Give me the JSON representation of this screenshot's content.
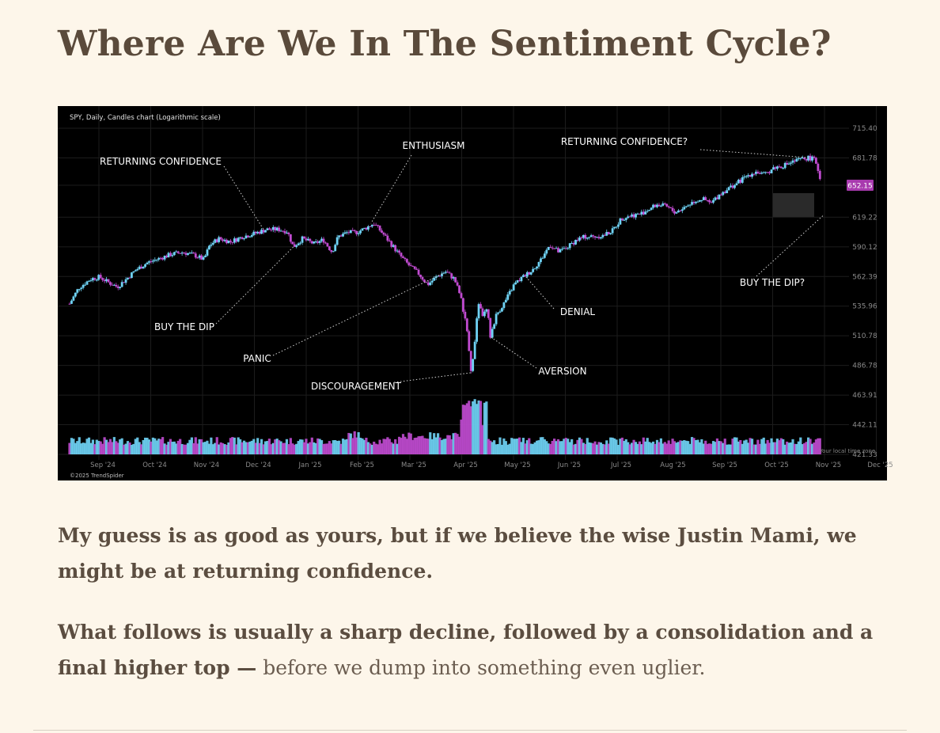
{
  "article": {
    "title": "Where Are We In The Sentiment Cycle?",
    "paragraph1": "My guess is as good as yours, but if we believe the wise Justin Mami, we might be at returning confidence.",
    "paragraph2_bold": "What follows is usually a sharp decline, followed by a consolidation and a final higher top —",
    "paragraph2_rest": " before we dump into something even uglier."
  },
  "chart_data": {
    "type": "candlestick",
    "title": "SPY, Daily, Candles chart (Logarithmic scale)",
    "footer_credit": "©2025 TrendSpider",
    "timezone_label": "Your local time zone",
    "y_scale": "log",
    "ylim": [
      421.33,
      715.4
    ],
    "y_ticks": [
      715.4,
      681.78,
      652.15,
      619.22,
      590.12,
      562.39,
      535.96,
      510.78,
      486.78,
      463.91,
      442.11,
      421.33
    ],
    "y_tick_labels": [
      "715.40",
      "681.78",
      "652.15",
      "619.22",
      "590.12",
      "562.39",
      "535.96",
      "510.78",
      "486.78",
      "463.91",
      "442.11",
      "421.33"
    ],
    "current_price": 652.15,
    "current_price_label": "652.15",
    "x_ticks": [
      "Sep '24",
      "Oct '24",
      "Nov '24",
      "Dec '24",
      "Jan '25",
      "Feb '25",
      "Mar '25",
      "Apr '25",
      "May '25",
      "Jun '25",
      "Jul '25",
      "Aug '25",
      "Sep '25",
      "Oct '25",
      "Nov '25",
      "Dec '25"
    ],
    "price_path": [
      [
        0,
        538
      ],
      [
        0.3,
        552
      ],
      [
        0.7,
        560
      ],
      [
        1.0,
        562
      ],
      [
        1.3,
        557
      ],
      [
        1.6,
        553
      ],
      [
        1.9,
        560
      ],
      [
        2.2,
        568
      ],
      [
        2.6,
        575
      ],
      [
        3.0,
        579
      ],
      [
        3.4,
        583
      ],
      [
        3.8,
        585
      ],
      [
        4.2,
        582
      ],
      [
        4.5,
        578
      ],
      [
        4.7,
        592
      ],
      [
        5.0,
        598
      ],
      [
        5.4,
        595
      ],
      [
        5.8,
        600
      ],
      [
        6.2,
        603
      ],
      [
        6.6,
        607
      ],
      [
        7.0,
        607
      ],
      [
        7.3,
        605
      ],
      [
        7.5,
        590
      ],
      [
        7.8,
        598
      ],
      [
        8.2,
        593
      ],
      [
        8.5,
        597
      ],
      [
        8.8,
        585
      ],
      [
        9.0,
        600
      ],
      [
        9.3,
        604
      ],
      [
        9.6,
        604
      ],
      [
        9.9,
        608
      ],
      [
        10.2,
        613
      ],
      [
        10.5,
        603
      ],
      [
        10.8,
        592
      ],
      [
        11.1,
        581
      ],
      [
        11.4,
        572
      ],
      [
        11.7,
        565
      ],
      [
        12.0,
        555
      ],
      [
        12.3,
        562
      ],
      [
        12.6,
        567
      ],
      [
        12.9,
        560
      ],
      [
        13.1,
        545
      ],
      [
        13.3,
        520
      ],
      [
        13.45,
        481
      ],
      [
        13.55,
        498
      ],
      [
        13.7,
        540
      ],
      [
        13.85,
        528
      ],
      [
        14.0,
        533
      ],
      [
        14.1,
        510
      ],
      [
        14.3,
        528
      ],
      [
        14.6,
        540
      ],
      [
        14.9,
        555
      ],
      [
        15.2,
        562
      ],
      [
        15.5,
        568
      ],
      [
        15.8,
        578
      ],
      [
        16.1,
        592
      ],
      [
        16.4,
        585
      ],
      [
        16.7,
        590
      ],
      [
        17.0,
        597
      ],
      [
        17.3,
        600
      ],
      [
        17.6,
        600
      ],
      [
        17.9,
        601
      ],
      [
        18.2,
        606
      ],
      [
        18.5,
        618
      ],
      [
        18.8,
        621
      ],
      [
        19.1,
        622
      ],
      [
        19.4,
        627
      ],
      [
        19.7,
        632
      ],
      [
        20.0,
        630
      ],
      [
        20.3,
        624
      ],
      [
        20.6,
        629
      ],
      [
        20.9,
        635
      ],
      [
        21.2,
        638
      ],
      [
        21.5,
        633
      ],
      [
        21.8,
        643
      ],
      [
        22.1,
        649
      ],
      [
        22.4,
        655
      ],
      [
        22.7,
        662
      ],
      [
        23.0,
        667
      ],
      [
        23.3,
        663
      ],
      [
        23.6,
        671
      ],
      [
        23.9,
        673
      ],
      [
        24.2,
        677
      ],
      [
        24.5,
        680
      ],
      [
        24.8,
        682
      ],
      [
        25.0,
        679
      ],
      [
        25.1,
        668
      ],
      [
        25.2,
        652
      ]
    ],
    "annotations": [
      {
        "label": "RETURNING CONFIDENCE",
        "x": 6.5,
        "price": 607
      },
      {
        "label": "BUY THE DIP",
        "x": 7.5,
        "price": 590
      },
      {
        "label": "ENTHUSIASM",
        "x": 10.1,
        "price": 613
      },
      {
        "label": "PANIC",
        "x": 12.5,
        "price": 565
      },
      {
        "label": "DISCOURAGEMENT",
        "x": 13.45,
        "price": 481
      },
      {
        "label": "AVERSION",
        "x": 14.1,
        "price": 510
      },
      {
        "label": "DENIAL",
        "x": 15.3,
        "price": 562
      },
      {
        "label": "RETURNING CONFIDENCE?",
        "x": 24.8,
        "price": 682
      },
      {
        "label": "BUY THE DIP?",
        "x": 25.3,
        "price": 622
      }
    ],
    "volume_note": "Volume bars along bottom of chart with spike in April '25"
  },
  "colors": {
    "background_page": "#fdf6ea",
    "chart_bg": "#000000",
    "up_candle": "#6fd3f5",
    "down_candle": "#c04bd0",
    "price_badge": "#a83aae"
  }
}
